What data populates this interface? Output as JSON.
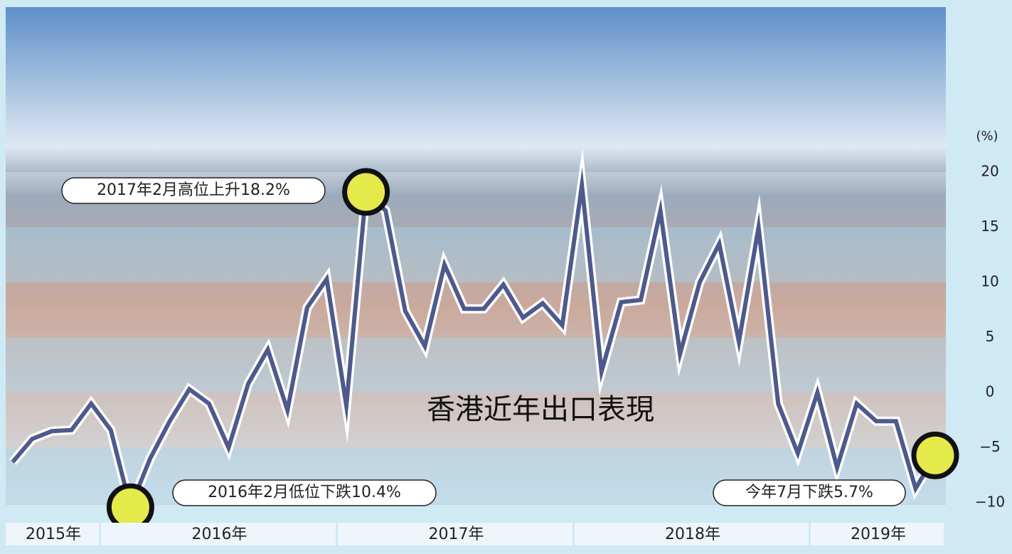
{
  "chart_data": {
    "type": "line",
    "title": "香港近年出口表現",
    "unit_label": "(%)",
    "categories": [
      null,
      null,
      null,
      null,
      null,
      null,
      null,
      null,
      null,
      null,
      null,
      null,
      null,
      null,
      null,
      null,
      null,
      null,
      null,
      null,
      null,
      null,
      null,
      null,
      null,
      null,
      null,
      null,
      null,
      null,
      null,
      null,
      null,
      null,
      null,
      null,
      null,
      null,
      null,
      null,
      null,
      null,
      null,
      null,
      null,
      null,
      null,
      null
    ],
    "year_labels": [
      "2015年",
      "2016年",
      "2017年",
      "2018年",
      "2019年"
    ],
    "series": [
      {
        "name": null,
        "color": "#4e5a8c",
        "values": [
          -6.3,
          -4.2,
          -3.5,
          -3.4,
          -1.0,
          -3.4,
          -10.4,
          -6.0,
          -2.6,
          0.3,
          -1.0,
          -5.0,
          0.8,
          3.9,
          -1.6,
          7.7,
          10.3,
          -1.2,
          18.2,
          16.5,
          7.4,
          4.2,
          11.6,
          7.6,
          7.6,
          9.8,
          6.8,
          8.1,
          6.1,
          18.8,
          1.9,
          8.2,
          8.4,
          16.5,
          3.5,
          10.0,
          13.5,
          4.6,
          15.0,
          -1.0,
          -5.5,
          0.0,
          -6.8,
          -1.0,
          -2.6,
          -2.6,
          -8.7,
          -5.7
        ]
      }
    ],
    "ylim": [
      -10,
      20
    ],
    "yticks": [
      {
        "value": -10,
        "label": "−10"
      },
      {
        "value": -5,
        "label": "−5"
      },
      0,
      5,
      10,
      15,
      20
    ],
    "annotations": [
      "2016年2月低位下跌10.4%",
      "2017年2月高位上升18.2%",
      "今年7月下跌5.7%"
    ]
  }
}
